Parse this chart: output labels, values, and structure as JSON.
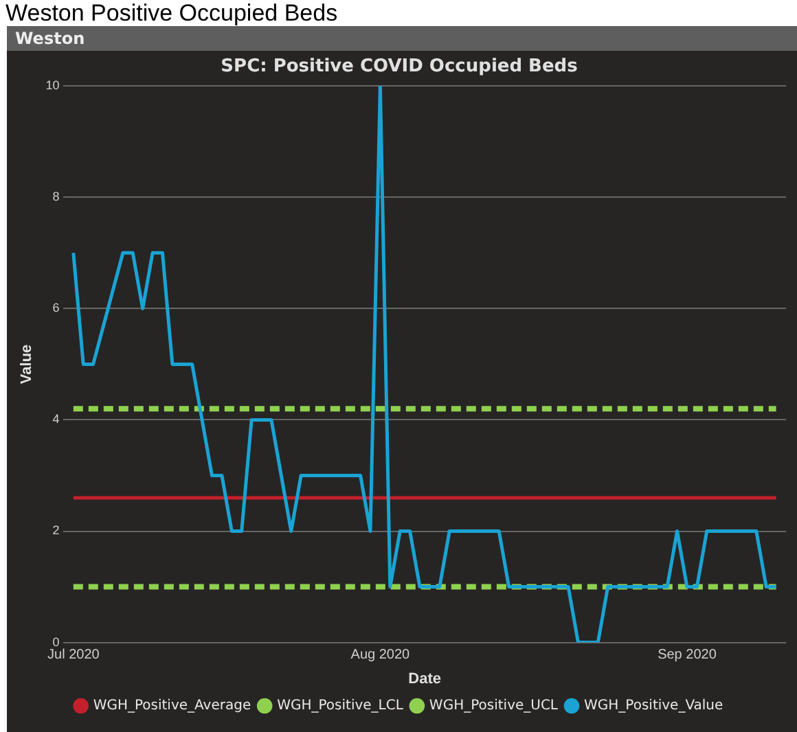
{
  "chart_data": {
    "type": "line",
    "title": "SPC: Positive COVID Occupied Beds",
    "subtitle": "Weston",
    "annotations": [
      "Weston Positive Occupied Beds"
    ],
    "xlabel": "Date",
    "ylabel": "Value",
    "xlim": [
      "2020-06-30",
      "2020-09-11"
    ],
    "xticks": [
      {
        "value": "2020-07-01",
        "label": "Jul 2020"
      },
      {
        "value": "2020-08-01",
        "label": "Aug 2020"
      },
      {
        "value": "2020-09-01",
        "label": "Sep 2020"
      }
    ],
    "ylim": [
      0,
      10
    ],
    "yticks": [
      0,
      2,
      4,
      6,
      8,
      10
    ],
    "grid": "y",
    "legend": "bottom",
    "marker": "none",
    "series": [
      {
        "name": "WGH_Positive_Average",
        "color": "#c4202b",
        "line_style": "solid",
        "x": [
          "2020-07-01",
          "2020-09-10"
        ],
        "values": [
          2.6,
          2.6
        ]
      },
      {
        "name": "WGH_Positive_LCL",
        "color": "#8fd14f",
        "line_style": "dashed",
        "x": [
          "2020-07-01",
          "2020-09-10"
        ],
        "values": [
          1.0,
          1.0
        ]
      },
      {
        "name": "WGH_Positive_UCL",
        "color": "#8fd14f",
        "line_style": "dashed",
        "x": [
          "2020-07-01",
          "2020-09-10"
        ],
        "values": [
          4.2,
          4.2
        ]
      },
      {
        "name": "WGH_Positive_Value",
        "color": "#1aa3d4",
        "line_style": "solid",
        "x": [
          "2020-07-01",
          "2020-07-02",
          "2020-07-03",
          "2020-07-06",
          "2020-07-07",
          "2020-07-08",
          "2020-07-09",
          "2020-07-10",
          "2020-07-11",
          "2020-07-13",
          "2020-07-15",
          "2020-07-16",
          "2020-07-17",
          "2020-07-18",
          "2020-07-19",
          "2020-07-21",
          "2020-07-23",
          "2020-07-24",
          "2020-07-30",
          "2020-07-31",
          "2020-08-01",
          "2020-08-02",
          "2020-08-03",
          "2020-08-04",
          "2020-08-05",
          "2020-08-07",
          "2020-08-08",
          "2020-08-13",
          "2020-08-14",
          "2020-08-20",
          "2020-08-21",
          "2020-08-23",
          "2020-08-24",
          "2020-08-30",
          "2020-08-31",
          "2020-09-01",
          "2020-09-02",
          "2020-09-03",
          "2020-09-08",
          "2020-09-09",
          "2020-09-10"
        ],
        "values": [
          7,
          5,
          5,
          7,
          7,
          6,
          7,
          7,
          5,
          5,
          3,
          3,
          2,
          2,
          4,
          4,
          2,
          3,
          3,
          2,
          10,
          1,
          2,
          2,
          1,
          1,
          2,
          2,
          1,
          1,
          0,
          0,
          1,
          1,
          2,
          1,
          1,
          2,
          2,
          1,
          1
        ]
      }
    ]
  }
}
